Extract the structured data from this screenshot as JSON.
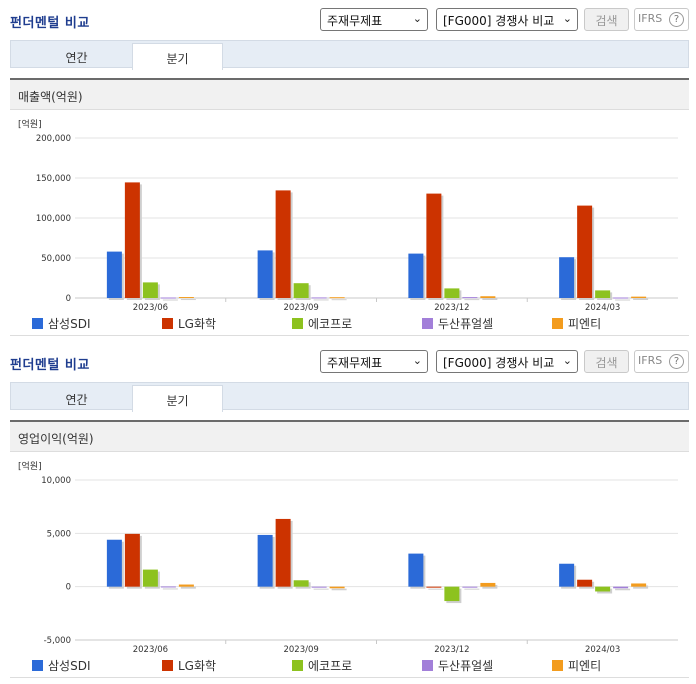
{
  "panels": [
    {
      "title": "펀더멘털 비교",
      "select1": "주재무제표",
      "select2": "[FG000] 경쟁사 비교",
      "search_label": "검색",
      "ifrs_label": "IFRS",
      "help_glyph": "?",
      "tabs": [
        "연간",
        "분기"
      ],
      "active_tab": "분기",
      "chart_title": "매출액(억원)"
    },
    {
      "title": "펀더멘털 비교",
      "select1": "주재무제표",
      "select2": "[FG000] 경쟁사 비교",
      "search_label": "검색",
      "ifrs_label": "IFRS",
      "help_glyph": "?",
      "tabs": [
        "연간",
        "분기"
      ],
      "active_tab": "분기",
      "chart_title": "영업이익(억원)"
    }
  ],
  "icons": {
    "dropdown": "chevron-down-icon",
    "help": "question-circle-icon"
  },
  "colors": {
    "삼성SDI": "#2b6ad8",
    "LG화학": "#cc3300",
    "에코프로": "#8dc21f",
    "두산퓨얼셀": "#a27fd9",
    "피엔티": "#f39c1e"
  },
  "chart_data": [
    {
      "type": "bar",
      "title": "매출액(억원)",
      "unit_label": "[억원]",
      "categories": [
        "2023/06",
        "2023/09",
        "2023/12",
        "2024/03"
      ],
      "ylim": [
        0,
        200000
      ],
      "yticks": [
        0,
        50000,
        100000,
        150000,
        200000
      ],
      "ytick_labels": [
        "0",
        "50,000",
        "100,000",
        "150,000",
        "200,000"
      ],
      "grid": true,
      "legend": "bottom",
      "series": [
        {
          "name": "삼성SDI",
          "values": [
            58000,
            59500,
            55500,
            51000
          ]
        },
        {
          "name": "LG화학",
          "values": [
            144500,
            134500,
            130500,
            115500
          ]
        },
        {
          "name": "에코프로",
          "values": [
            19500,
            18500,
            12000,
            9500
          ]
        },
        {
          "name": "두산퓨얼셀",
          "values": [
            600,
            700,
            1100,
            600
          ]
        },
        {
          "name": "피엔티",
          "values": [
            1200,
            1000,
            2200,
            1700
          ]
        }
      ]
    },
    {
      "type": "bar",
      "title": "영업이익(억원)",
      "unit_label": "[억원]",
      "categories": [
        "2023/06",
        "2023/09",
        "2023/12",
        "2024/03"
      ],
      "ylim": [
        -5000,
        10000
      ],
      "yticks": [
        -5000,
        0,
        5000,
        10000
      ],
      "ytick_labels": [
        "-5,000",
        "0",
        "5,000",
        "10,000"
      ],
      "grid": true,
      "legend": "bottom",
      "series": [
        {
          "name": "삼성SDI",
          "values": [
            4400,
            4850,
            3100,
            2150
          ]
        },
        {
          "name": "LG화학",
          "values": [
            4950,
            6350,
            0,
            650
          ]
        },
        {
          "name": "에코프로",
          "values": [
            1600,
            600,
            -1350,
            -450
          ]
        },
        {
          "name": "두산퓨얼셀",
          "values": [
            20,
            -10,
            -20,
            -150
          ]
        },
        {
          "name": "피엔티",
          "values": [
            200,
            -150,
            350,
            300
          ]
        }
      ]
    }
  ]
}
